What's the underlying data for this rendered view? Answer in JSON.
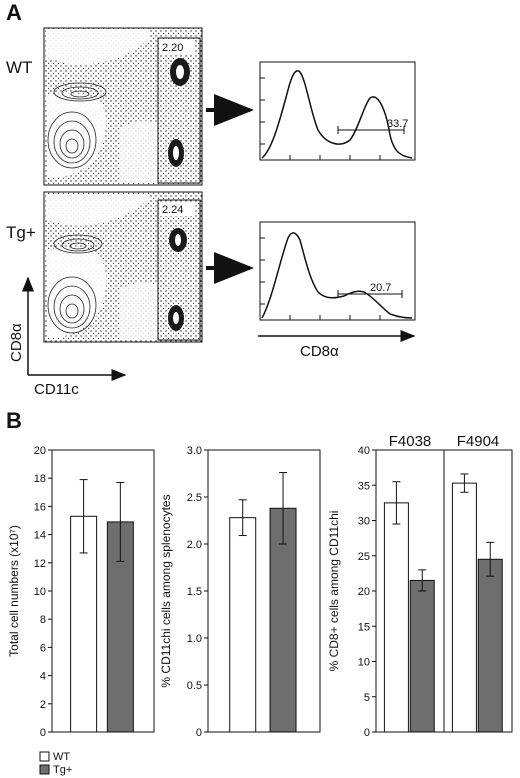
{
  "panel_a": {
    "label": "A",
    "rows": [
      {
        "name": "WT",
        "gate_value": "2.20",
        "hist_value": "33.7"
      },
      {
        "name": "Tg+",
        "gate_value": "2.24",
        "hist_value": "20.7"
      }
    ],
    "y_axis": "CD8α",
    "x_axis": "CD11c",
    "hist_axis": "CD8α"
  },
  "panel_b": {
    "label": "B",
    "legend": [
      {
        "label": "WT",
        "color": "#ffffff"
      },
      {
        "label": "Tg+",
        "color": "#6e6e6e"
      }
    ]
  },
  "chart_data": [
    {
      "type": "bar",
      "categories": [
        "WT",
        "Tg+"
      ],
      "values": [
        15.3,
        14.9
      ],
      "errors": [
        2.6,
        2.8
      ],
      "ylabel": "Total cell numbers (x10⁷)",
      "ylim": [
        0,
        20
      ],
      "yticks": [
        "0",
        "2",
        "4",
        "6",
        "8",
        "10",
        "12",
        "14",
        "16",
        "18",
        "20"
      ]
    },
    {
      "type": "bar",
      "categories": [
        "WT",
        "Tg+"
      ],
      "values": [
        2.28,
        2.38
      ],
      "errors": [
        0.19,
        0.38
      ],
      "ylabel": "% CD11chi cells among splenocytes",
      "ylim": [
        0,
        3.0
      ],
      "yticks": [
        "0",
        "0.5",
        "1.0",
        "1.5",
        "2.0",
        "2.5",
        "3.0"
      ]
    },
    {
      "type": "bar",
      "groups": [
        "F4038",
        "F4904"
      ],
      "categories": [
        "WT",
        "Tg+"
      ],
      "series": [
        {
          "name": "WT",
          "values": [
            32.5,
            35.3
          ],
          "errors": [
            3.0,
            1.3
          ]
        },
        {
          "name": "Tg+",
          "values": [
            21.5,
            24.5
          ],
          "errors": [
            1.5,
            2.4
          ]
        }
      ],
      "ylabel": "% CD8+ cells among CD11chi",
      "ylim": [
        0,
        40
      ],
      "yticks": [
        "0",
        "5",
        "10",
        "15",
        "20",
        "25",
        "30",
        "35",
        "40"
      ]
    }
  ]
}
